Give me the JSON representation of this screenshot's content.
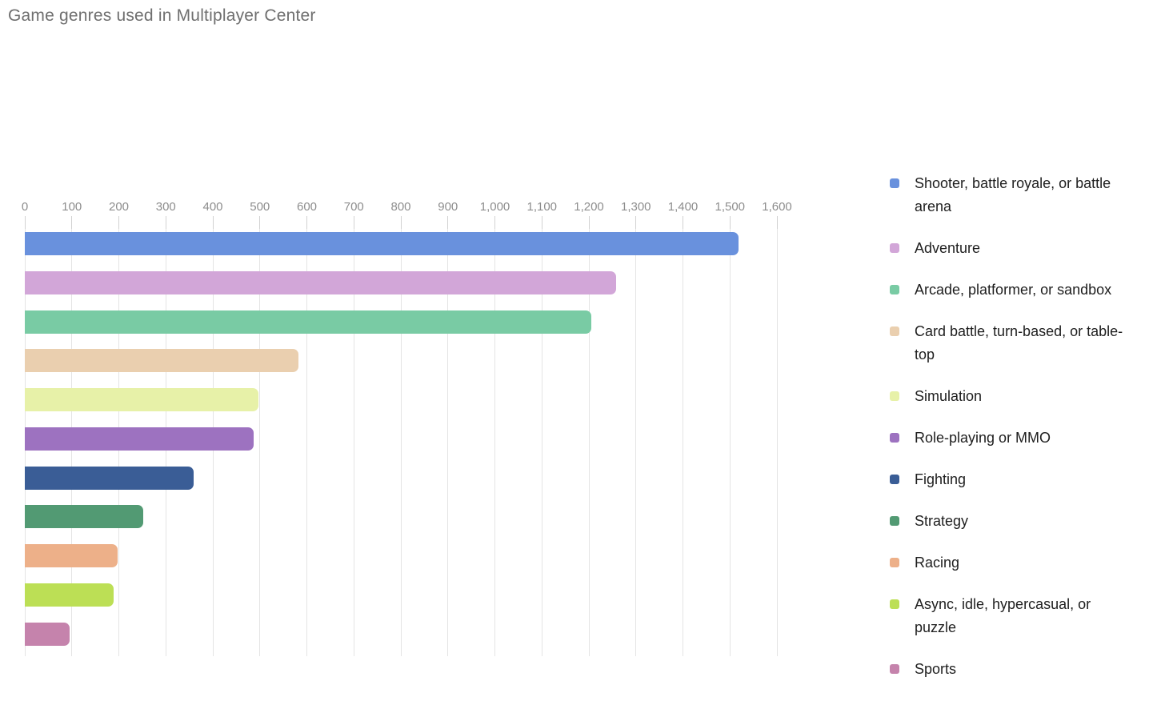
{
  "chart_data": {
    "type": "bar",
    "orientation": "horizontal",
    "title": "Game genres used in Multiplayer Center",
    "categories": [
      "Shooter, battle royale, or battle arena",
      "Adventure",
      "Arcade, platformer, or sandbox",
      "Card battle, turn-based, or table-top",
      "Simulation",
      "Role-playing or MMO",
      "Fighting",
      "Strategy",
      "Racing",
      "Async, idle, hypercasual, or puzzle",
      "Sports"
    ],
    "values": [
      1518,
      1258,
      1205,
      582,
      497,
      486,
      359,
      252,
      197,
      189,
      95
    ],
    "colors": [
      "#6991DD",
      "#D2A6D8",
      "#79CBA4",
      "#EACFAF",
      "#E7F1A8",
      "#9D72C0",
      "#3A5D96",
      "#529A73",
      "#EDB089",
      "#BCDF55",
      "#C583AC"
    ],
    "xlabel": "",
    "ylabel": "",
    "xlim": [
      0,
      1600
    ],
    "x_tick_values": [
      0,
      100,
      200,
      300,
      400,
      500,
      600,
      700,
      800,
      900,
      1000,
      1100,
      1200,
      1300,
      1400,
      1500,
      1600
    ],
    "x_tick_labels": [
      "0",
      "100",
      "200",
      "300",
      "400",
      "500",
      "600",
      "700",
      "800",
      "900",
      "1,000",
      "1,100",
      "1,200",
      "1,300",
      "1,400",
      "1,500",
      "1,600"
    ],
    "grid": "vertical-only",
    "legend_position": "right"
  },
  "legend": {
    "items": [
      {
        "label": "Shooter, battle royale, or battle arena",
        "color": "#6991DD"
      },
      {
        "label": "Adventure",
        "color": "#D2A6D8"
      },
      {
        "label": "Arcade, platformer, or sandbox",
        "color": "#79CBA4"
      },
      {
        "label": "Card battle, turn-based, or table-top",
        "color": "#EACFAF"
      },
      {
        "label": "Simulation",
        "color": "#E7F1A8"
      },
      {
        "label": "Role-playing or MMO",
        "color": "#9D72C0"
      },
      {
        "label": "Fighting",
        "color": "#3A5D96"
      },
      {
        "label": "Strategy",
        "color": "#529A73"
      },
      {
        "label": "Racing",
        "color": "#EDB089"
      },
      {
        "label": "Async, idle, hypercasual, or puzzle",
        "color": "#BCDF55"
      },
      {
        "label": "Sports",
        "color": "#C583AC"
      }
    ]
  },
  "styles": {
    "background": "#FFFFFF",
    "title_color": "#6F6F6F",
    "axis_label_color": "#8D8D8D",
    "gridline_color": "#E4E4E4",
    "tick_color": "#D2D2D2",
    "legend_text_color": "#1E1E1E"
  }
}
